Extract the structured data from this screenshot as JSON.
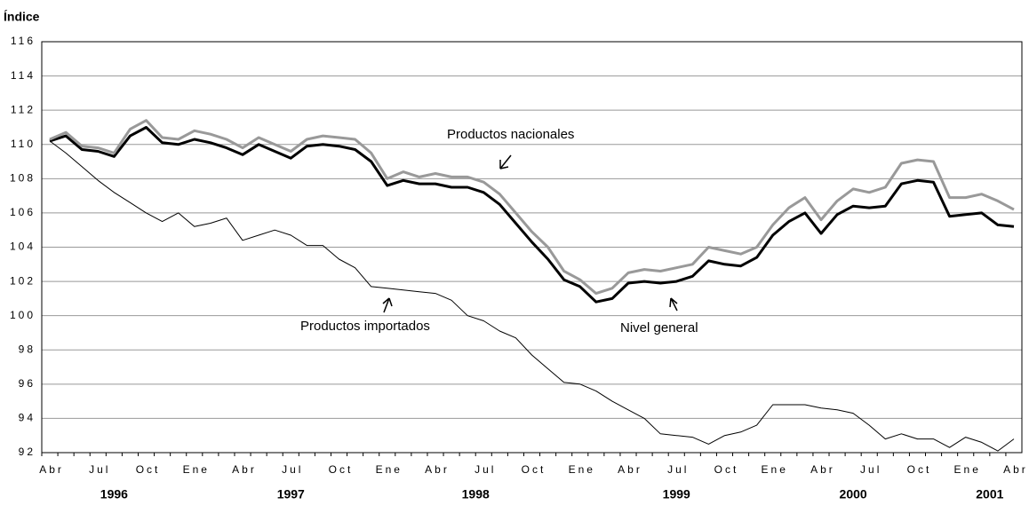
{
  "chart_data": {
    "type": "line",
    "y_label": "Índice",
    "categories": [
      "Abr",
      null,
      null,
      "Jul",
      null,
      null,
      "Oct",
      null,
      null,
      "Ene",
      null,
      null,
      "Abr",
      null,
      null,
      "Jul",
      null,
      null,
      "Oct",
      null,
      null,
      "Ene",
      null,
      null,
      "Abr",
      null,
      null,
      "Jul",
      null,
      null,
      "Oct",
      null,
      null,
      "Ene",
      null,
      null,
      "Abr",
      null,
      null,
      "Jul",
      null,
      null,
      "Oct",
      null,
      null,
      "Ene",
      null,
      null,
      "Abr",
      null,
      null,
      "Jul",
      null,
      null,
      "Oct",
      null,
      null,
      "Ene",
      null,
      null,
      "Abr"
    ],
    "years": [
      "1996",
      "1997",
      "1998",
      "1999",
      "2000",
      "2001"
    ],
    "series": [
      {
        "name": "Productos nacionales",
        "color": "#999999",
        "width": 3,
        "values": [
          110.3,
          110.7,
          109.9,
          109.8,
          109.5,
          110.9,
          111.4,
          110.4,
          110.3,
          110.8,
          110.6,
          110.3,
          109.8,
          110.4,
          110.0,
          109.6,
          110.3,
          110.5,
          110.4,
          110.3,
          109.5,
          108.0,
          108.4,
          108.1,
          108.3,
          108.1,
          108.1,
          107.8,
          107.1,
          106.0,
          104.9,
          104.0,
          102.6,
          102.1,
          101.3,
          101.6,
          102.5,
          102.7,
          102.6,
          102.8,
          103.0,
          104.0,
          103.8,
          103.6,
          104.0,
          105.3,
          106.3,
          106.9,
          105.6,
          106.7,
          107.4,
          107.2,
          107.5,
          108.9,
          109.1,
          109.0,
          106.9,
          106.9,
          107.1,
          106.7,
          106.2
        ]
      },
      {
        "name": "Nivel general",
        "color": "#000000",
        "width": 3,
        "values": [
          110.2,
          110.5,
          109.7,
          109.6,
          109.3,
          110.5,
          111.0,
          110.1,
          110.0,
          110.3,
          110.1,
          109.8,
          109.4,
          110.0,
          109.6,
          109.2,
          109.9,
          110.0,
          109.9,
          109.7,
          109.0,
          107.6,
          107.9,
          107.7,
          107.7,
          107.5,
          107.5,
          107.2,
          106.5,
          105.4,
          104.3,
          103.3,
          102.1,
          101.7,
          100.8,
          101.0,
          101.9,
          102.0,
          101.9,
          102.0,
          102.3,
          103.2,
          103.0,
          102.9,
          103.4,
          104.7,
          105.5,
          106.0,
          104.8,
          105.9,
          106.4,
          106.3,
          106.4,
          107.7,
          107.9,
          107.8,
          105.8,
          105.9,
          106.0,
          105.3,
          105.2
        ]
      },
      {
        "name": "Productos importados",
        "color": "#000000",
        "width": 1,
        "values": [
          110.2,
          109.5,
          108.7,
          107.9,
          107.2,
          106.6,
          106.0,
          105.5,
          106.0,
          105.2,
          105.4,
          105.7,
          104.4,
          104.7,
          105.0,
          104.7,
          104.1,
          104.1,
          103.3,
          102.8,
          101.7,
          101.6,
          101.5,
          101.4,
          101.3,
          100.9,
          100.0,
          99.7,
          99.1,
          98.7,
          97.7,
          96.9,
          96.1,
          96.0,
          95.6,
          95.0,
          94.5,
          94.0,
          93.1,
          93.0,
          92.9,
          92.5,
          93.0,
          93.2,
          93.6,
          94.8,
          94.8,
          94.8,
          94.6,
          94.5,
          94.3,
          93.6,
          92.8,
          93.1,
          92.8,
          92.8,
          92.3,
          92.9,
          92.6,
          92.1,
          92.8
        ]
      }
    ],
    "ylim": [
      92,
      116
    ],
    "yticks": [
      92,
      94,
      96,
      98,
      100,
      102,
      104,
      106,
      108,
      110,
      112,
      114,
      116
    ],
    "grid": true
  }
}
